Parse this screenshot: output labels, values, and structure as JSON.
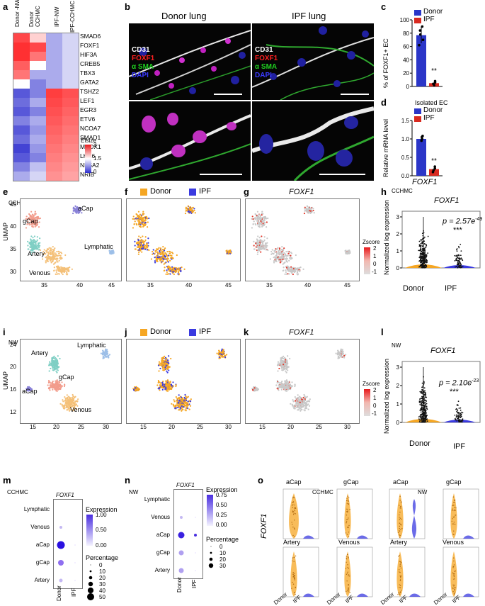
{
  "panels": {
    "a": {
      "label": "a",
      "columns": [
        "Donor -NW",
        "Donor CCHMC",
        "IPF-NW",
        "IPF-CCHMC"
      ],
      "genes": [
        "SMAD6",
        "FOXF1",
        "HIF3A",
        "CREB5",
        "TBX3",
        "GATA2",
        "TSHZ2",
        "LEF1",
        "EGR3",
        "ETV6",
        "NCOA7",
        "SMAD1",
        "MEOX1",
        "LHX6",
        "NR5A2",
        "NRIB"
      ],
      "legend_title": "Efsize",
      "legend_ticks": [
        "3",
        "1.5",
        "0"
      ]
    },
    "b": {
      "label": "b",
      "left_title": "Donor lung",
      "right_title": "IPF lung",
      "stains": {
        "cd31": "CD31",
        "foxf1": "FOXF1",
        "asma": "α SMA",
        "dapi": "DAPI"
      }
    },
    "c": {
      "label": "c",
      "ylabel": "% of FOXF1+ EC",
      "yticks": [
        "100",
        "80",
        "60",
        "40",
        "20",
        "0"
      ],
      "sig": "**",
      "legend": {
        "donor": "Donor",
        "ipf": "IPF"
      }
    },
    "d": {
      "label": "d",
      "title": "Isolated EC",
      "ylabel": "Relative mRNA level",
      "yticks": [
        "1.5",
        "1.0",
        "0.5",
        "0.0"
      ],
      "sig": "**",
      "xlabel": "FOXF1",
      "legend": {
        "donor": "Donor",
        "ipf": "IPF"
      }
    },
    "e": {
      "label": "e",
      "cohort": "CCHMC",
      "ylabel": "UMAP",
      "yticks": [
        "45",
        "40",
        "35",
        "30"
      ],
      "xticks": [
        "35",
        "40",
        "45"
      ],
      "clusters": {
        "acap": "aCap",
        "gcap": "gCap",
        "artery": "Artery",
        "lymphatic": "Lymphatic",
        "venous": "Venous"
      }
    },
    "f": {
      "label": "f",
      "legend": {
        "donor": "Donor",
        "ipf": "IPF"
      },
      "xticks": [
        "35",
        "40",
        "45"
      ]
    },
    "g": {
      "label": "g",
      "title": "FOXF1",
      "xticks": [
        "35",
        "40",
        "45"
      ],
      "zlabel": "Zscore",
      "zticks": [
        "2",
        "1",
        "0",
        "-1"
      ]
    },
    "h": {
      "label": "h",
      "cohort": "CCHMC",
      "title": "FOXF1",
      "ylabel": "Normalized log expression",
      "yticks": [
        "3",
        "2",
        "1",
        "0"
      ],
      "xcats": [
        "Donor",
        "IPF"
      ],
      "pvalue": "p = 2.57e",
      "pexp": "-49",
      "sig": "***"
    },
    "i": {
      "label": "i",
      "cohort": "NW",
      "ylabel": "UMAP",
      "yticks": [
        "24",
        "20",
        "16",
        "12"
      ],
      "xticks": [
        "15",
        "20",
        "25",
        "30"
      ],
      "clusters": {
        "artery": "Artery",
        "lymphatic": "Lymphatic",
        "gcap": "gCap",
        "acap": "aCap",
        "venous": "Venous"
      }
    },
    "j": {
      "label": "j",
      "legend": {
        "donor": "Donor",
        "ipf": "IPF"
      },
      "xticks": [
        "15",
        "20",
        "25",
        "30"
      ]
    },
    "k": {
      "label": "k",
      "title": "FOXF1",
      "xticks": [
        "15",
        "20",
        "25",
        "30"
      ],
      "zlabel": "Zscore",
      "zticks": [
        "2",
        "1",
        "0",
        "-1"
      ]
    },
    "l": {
      "label": "l",
      "cohort": "NW",
      "title": "FOXF1",
      "ylabel": "Normalized log expression",
      "yticks": [
        "3",
        "2",
        "1",
        "0"
      ],
      "xcats": [
        "Donor",
        "IPF"
      ],
      "pvalue": "p = 2.10e",
      "pexp": "-23",
      "sig": "***"
    },
    "m": {
      "label": "m",
      "cohort": "CCHMC",
      "title": "FOXF1",
      "rows": [
        "Lymphatic",
        "Venous",
        "aCap",
        "gCap",
        "Artery"
      ],
      "cols": [
        "Donor",
        "IPF"
      ],
      "expr_title": "Expression",
      "expr_ticks": [
        "1.00",
        "0.50",
        "0.00"
      ],
      "pct_title": "Percentage",
      "pct_ticks": [
        "0",
        "10",
        "20",
        "30",
        "40",
        "50"
      ]
    },
    "n": {
      "label": "n",
      "cohort": "NW",
      "title": "FOXF1",
      "rows": [
        "Lymphatic",
        "Venous",
        "aCap",
        "gCap",
        "Artery"
      ],
      "cols": [
        "Donor",
        "IPF"
      ],
      "expr_title": "Expression",
      "expr_ticks": [
        "0.75",
        "0.50",
        "0.25",
        "0.00"
      ],
      "pct_title": "Percentage",
      "pct_ticks": [
        "0",
        "10",
        "20",
        "30"
      ]
    },
    "o": {
      "label": "o",
      "ylabel": "FOXF1",
      "cohort_left": "CCHMC",
      "cohort_right": "NW",
      "subtitles": {
        "acap": "aCap",
        "gcap": "gCap",
        "artery": "Artery",
        "venous": "Venous"
      },
      "xcats": [
        "Donor",
        "IPF"
      ]
    }
  },
  "colors": {
    "donor": "#f5a623",
    "ipf": "#3a3ae0",
    "heat_high": "#e8191c",
    "heat_low": "#2e2ecf",
    "ipf_bar": "#d82a20",
    "donor_bar": "#2b36c8"
  }
}
